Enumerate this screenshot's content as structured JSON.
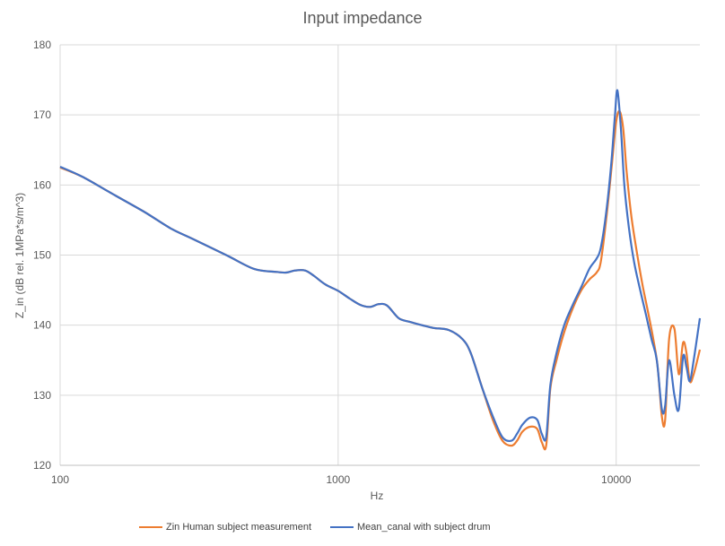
{
  "chart_data": {
    "type": "line",
    "title": "Input impedance",
    "xlabel": "Hz",
    "ylabel": "Z_in (dB rel. 1MPa*s/m^3)",
    "x_scale": "log",
    "xlim": [
      100,
      20000
    ],
    "ylim": [
      120,
      180
    ],
    "x_ticks": [
      100,
      1000,
      10000
    ],
    "x_tick_labels": [
      "100",
      "1000",
      "10000"
    ],
    "y_ticks": [
      120,
      130,
      140,
      150,
      160,
      170,
      180
    ],
    "y_tick_labels": [
      "120",
      "130",
      "140",
      "150",
      "160",
      "170",
      "180"
    ],
    "grid": true,
    "legend_position": "bottom",
    "series": [
      {
        "name": "Zin Human subject measurement",
        "color": "#ED7D31",
        "x": [
          100,
          120,
          150,
          200,
          250,
          300,
          400,
          500,
          600,
          650,
          700,
          760,
          820,
          900,
          1000,
          1100,
          1200,
          1300,
          1400,
          1500,
          1650,
          1800,
          2000,
          2200,
          2500,
          2800,
          3000,
          3300,
          3600,
          3900,
          4200,
          4400,
          4600,
          4900,
          5200,
          5400,
          5600,
          5800,
          6100,
          6500,
          7000,
          7500,
          8000,
          8500,
          8800,
          9200,
          9600,
          10000,
          10300,
          10600,
          10900,
          11300,
          11800,
          12400,
          13000,
          13600,
          14100,
          14600,
          15000,
          15500,
          16200,
          16800,
          17400,
          17900,
          18400,
          19000,
          20000
        ],
        "y": [
          162.5,
          161.2,
          159.0,
          156.2,
          153.8,
          152.3,
          149.9,
          148.0,
          147.6,
          147.5,
          147.8,
          147.8,
          147.0,
          145.8,
          144.9,
          143.8,
          142.9,
          142.6,
          143.0,
          142.8,
          141.0,
          140.5,
          140.0,
          139.6,
          139.3,
          138.0,
          136.0,
          131.0,
          126.5,
          123.5,
          122.8,
          123.5,
          124.8,
          125.5,
          125.2,
          123.3,
          122.8,
          131.0,
          135.0,
          139.0,
          142.5,
          145.0,
          146.5,
          147.5,
          149.0,
          155.0,
          162.0,
          169.0,
          170.5,
          168.0,
          162.0,
          156.0,
          151.0,
          146.0,
          142.0,
          138.0,
          134.0,
          127.0,
          126.5,
          138.0,
          139.5,
          133.0,
          137.5,
          136.0,
          132.0,
          133.0,
          136.5
        ]
      },
      {
        "name": "Mean_canal with subject drum",
        "color": "#4472C4",
        "x": [
          100,
          120,
          150,
          200,
          250,
          300,
          400,
          500,
          600,
          650,
          700,
          760,
          820,
          900,
          1000,
          1100,
          1200,
          1300,
          1400,
          1500,
          1650,
          1800,
          2000,
          2200,
          2500,
          2800,
          3000,
          3300,
          3600,
          3900,
          4200,
          4400,
          4600,
          4900,
          5200,
          5400,
          5600,
          5800,
          6100,
          6500,
          7000,
          7500,
          8000,
          8500,
          8800,
          9200,
          9600,
          9900,
          10100,
          10400,
          10700,
          11100,
          11600,
          12200,
          12800,
          13400,
          14000,
          14600,
          15000,
          15500,
          16200,
          16800,
          17400,
          17900,
          18400,
          19000,
          20000
        ],
        "y": [
          162.6,
          161.2,
          159.0,
          156.2,
          153.8,
          152.3,
          149.9,
          148.0,
          147.6,
          147.5,
          147.8,
          147.8,
          147.0,
          145.8,
          144.9,
          143.8,
          142.9,
          142.6,
          143.0,
          142.8,
          141.0,
          140.5,
          140.0,
          139.6,
          139.3,
          138.0,
          136.0,
          131.0,
          127.0,
          124.0,
          123.5,
          124.5,
          125.8,
          126.8,
          126.5,
          124.5,
          124.0,
          131.5,
          136.0,
          140.0,
          143.0,
          145.5,
          148.0,
          149.5,
          151.0,
          156.0,
          163.0,
          170.0,
          173.5,
          168.0,
          160.0,
          154.0,
          149.0,
          145.0,
          141.5,
          138.0,
          135.0,
          128.0,
          128.5,
          135.0,
          130.0,
          128.0,
          135.5,
          134.0,
          132.0,
          135.0,
          141.0
        ]
      }
    ]
  }
}
